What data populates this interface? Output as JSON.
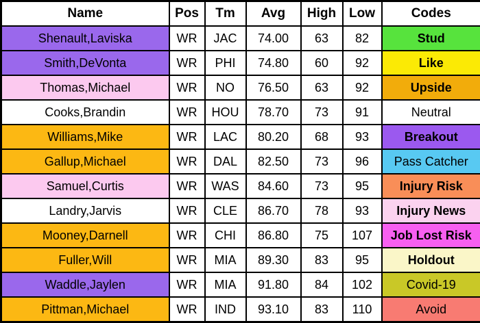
{
  "table": {
    "columns": [
      "Name",
      "Pos",
      "Tm",
      "Avg",
      "High",
      "Low",
      "Codes"
    ],
    "rows": [
      {
        "name": "Shenault,Laviska",
        "pos": "WR",
        "tm": "JAC",
        "avg": "74.00",
        "high": "63",
        "low": "82",
        "code": "Stud",
        "name_bg": "#9a68ec",
        "code_bg": "#57e33d",
        "code_bold": true
      },
      {
        "name": "Smith,DeVonta",
        "pos": "WR",
        "tm": "PHI",
        "avg": "74.80",
        "high": "60",
        "low": "92",
        "code": "Like",
        "name_bg": "#9a68ec",
        "code_bg": "#fbea05",
        "code_bold": true
      },
      {
        "name": "Thomas,Michael",
        "pos": "WR",
        "tm": "NO",
        "avg": "76.50",
        "high": "63",
        "low": "92",
        "code": "Upside",
        "name_bg": "#fcc9ef",
        "code_bg": "#f2ac0b",
        "code_bold": true
      },
      {
        "name": "Cooks,Brandin",
        "pos": "WR",
        "tm": "HOU",
        "avg": "78.70",
        "high": "73",
        "low": "91",
        "code": "Neutral",
        "name_bg": "#ffffff",
        "code_bg": "#ffffff",
        "code_bold": false
      },
      {
        "name": "Williams,Mike",
        "pos": "WR",
        "tm": "LAC",
        "avg": "80.20",
        "high": "68",
        "low": "93",
        "code": "Breakout",
        "name_bg": "#fcb813",
        "code_bg": "#9b59ef",
        "code_bold": true
      },
      {
        "name": "Gallup,Michael",
        "pos": "WR",
        "tm": "DAL",
        "avg": "82.50",
        "high": "73",
        "low": "96",
        "code": "Pass Catcher",
        "name_bg": "#fcb813",
        "code_bg": "#58c9f2",
        "code_bold": false
      },
      {
        "name": "Samuel,Curtis",
        "pos": "WR",
        "tm": "WAS",
        "avg": "84.60",
        "high": "73",
        "low": "95",
        "code": "Injury Risk",
        "name_bg": "#fcc9ef",
        "code_bg": "#f98e58",
        "code_bold": true
      },
      {
        "name": "Landry,Jarvis",
        "pos": "WR",
        "tm": "CLE",
        "avg": "86.70",
        "high": "78",
        "low": "93",
        "code": "Injury News",
        "name_bg": "#ffffff",
        "code_bg": "#fbd2ef",
        "code_bold": true
      },
      {
        "name": "Mooney,Darnell",
        "pos": "WR",
        "tm": "CHI",
        "avg": "86.80",
        "high": "75",
        "low": "107",
        "code": "Job Lost Risk",
        "name_bg": "#fcb813",
        "code_bg": "#f75ff0",
        "code_bold": true
      },
      {
        "name": "Fuller,Will",
        "pos": "WR",
        "tm": "MIA",
        "avg": "89.30",
        "high": "83",
        "low": "95",
        "code": "Holdout",
        "name_bg": "#fcb813",
        "code_bg": "#faf6c8",
        "code_bold": true
      },
      {
        "name": "Waddle,Jaylen",
        "pos": "WR",
        "tm": "MIA",
        "avg": "91.80",
        "high": "84",
        "low": "102",
        "code": "Covid-19",
        "name_bg": "#9a68ec",
        "code_bg": "#c9c827",
        "code_bold": false
      },
      {
        "name": "Pittman,Michael",
        "pos": "WR",
        "tm": "IND",
        "avg": "93.10",
        "high": "83",
        "low": "110",
        "code": "Avoid",
        "name_bg": "#fcb813",
        "code_bg": "#f87b72",
        "code_bold": false
      }
    ]
  },
  "colors": {
    "grid": "#000000",
    "header_bg": "#ffffff",
    "purple": "#9a68ec",
    "pink": "#fcc9ef",
    "gold": "#fcb813",
    "stud_green": "#57e33d",
    "like_yellow": "#fbea05",
    "upside_amber": "#f2ac0b",
    "breakout_purple": "#9b59ef",
    "pass_catcher_blue": "#58c9f2",
    "injury_risk_coral": "#f98e58",
    "injury_news_pink": "#fbd2ef",
    "job_lost_magenta": "#f75ff0",
    "holdout_cream": "#faf6c8",
    "covid_olive": "#c9c827",
    "avoid_salmon": "#f87b72"
  }
}
